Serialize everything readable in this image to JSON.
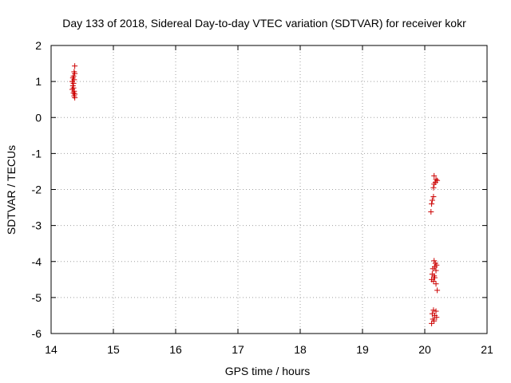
{
  "chart_data": {
    "type": "scatter",
    "title": "Day 133 of 2018, Sidereal Day-to-day VTEC variation (SDTVAR) for receiver kokr",
    "xlabel": "GPS time / hours",
    "ylabel": "SDTVAR / TECUs",
    "xlim": [
      14,
      21
    ],
    "ylim": [
      -6,
      2
    ],
    "x_ticks": [
      "14",
      "15",
      "16",
      "17",
      "18",
      "19",
      "20",
      "21"
    ],
    "y_ticks": [
      "-6",
      "-5",
      "-4",
      "-3",
      "-2",
      "-1",
      "0",
      "1",
      "2"
    ],
    "grid": true,
    "marker": "+",
    "series": [
      {
        "name": "SDTVAR",
        "color": "#cc0000",
        "points": [
          [
            14.38,
            1.43
          ],
          [
            14.37,
            1.27
          ],
          [
            14.38,
            1.22
          ],
          [
            14.36,
            1.15
          ],
          [
            14.35,
            1.1
          ],
          [
            14.37,
            1.05
          ],
          [
            14.34,
            1.0
          ],
          [
            14.36,
            0.95
          ],
          [
            14.35,
            0.88
          ],
          [
            14.36,
            0.82
          ],
          [
            14.34,
            0.78
          ],
          [
            14.37,
            0.73
          ],
          [
            14.36,
            0.68
          ],
          [
            14.38,
            0.65
          ],
          [
            14.37,
            0.6
          ],
          [
            14.38,
            0.55
          ],
          [
            20.15,
            -1.62
          ],
          [
            20.18,
            -1.72
          ],
          [
            20.2,
            -1.75
          ],
          [
            20.17,
            -1.8
          ],
          [
            20.15,
            -1.85
          ],
          [
            20.14,
            -1.95
          ],
          [
            20.14,
            -2.2
          ],
          [
            20.12,
            -2.3
          ],
          [
            20.11,
            -2.4
          ],
          [
            20.1,
            -2.62
          ],
          [
            20.15,
            -3.98
          ],
          [
            20.17,
            -4.05
          ],
          [
            20.19,
            -4.1
          ],
          [
            20.16,
            -4.15
          ],
          [
            20.13,
            -4.2
          ],
          [
            20.18,
            -4.25
          ],
          [
            20.12,
            -4.35
          ],
          [
            20.15,
            -4.4
          ],
          [
            20.16,
            -4.45
          ],
          [
            20.11,
            -4.5
          ],
          [
            20.14,
            -4.55
          ],
          [
            20.18,
            -4.62
          ],
          [
            20.2,
            -4.8
          ],
          [
            20.14,
            -5.35
          ],
          [
            20.18,
            -5.38
          ],
          [
            20.12,
            -5.45
          ],
          [
            20.16,
            -5.5
          ],
          [
            20.19,
            -5.55
          ],
          [
            20.13,
            -5.6
          ],
          [
            20.15,
            -5.65
          ],
          [
            20.11,
            -5.72
          ]
        ]
      }
    ]
  }
}
